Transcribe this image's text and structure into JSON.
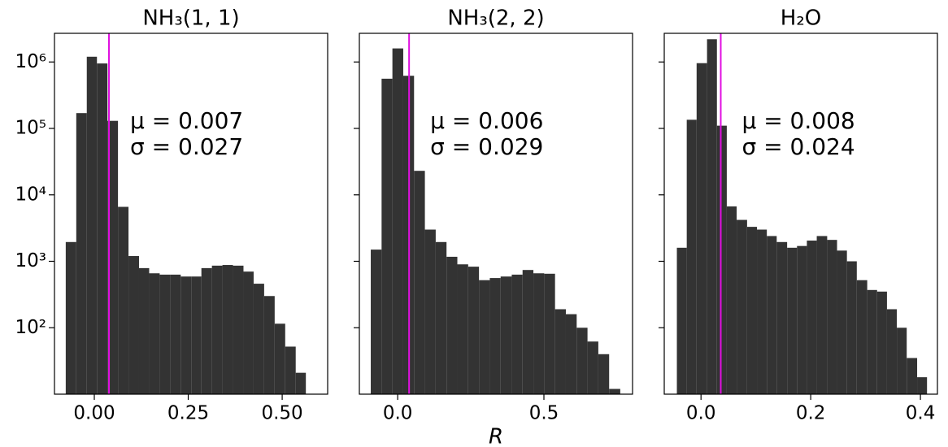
{
  "chart_data": [
    {
      "type": "histogram",
      "title": "NH₃(1, 1)",
      "yscale": "log",
      "color": "#333333",
      "vline_color": "#e010e0",
      "bins": [
        -0.076,
        -0.048,
        -0.02,
        0.007,
        0.035,
        0.063,
        0.091,
        0.119,
        0.146,
        0.174,
        0.202,
        0.23,
        0.258,
        0.285,
        0.313,
        0.341,
        0.369,
        0.397,
        0.424,
        0.452,
        0.48,
        0.508,
        0.536,
        0.563
      ],
      "counts": [
        1950,
        170000,
        1200000,
        950000,
        130000,
        6600,
        1200,
        790,
        660,
        630,
        630,
        590,
        590,
        790,
        860,
        880,
        860,
        700,
        460,
        300,
        115,
        52,
        21
      ],
      "vline": 0.039,
      "annotations": [
        "μ = 0.007",
        "σ = 0.027"
      ],
      "xlim": [
        -0.106,
        0.621
      ],
      "xticks": [
        {
          "value": 0,
          "label": "0.00"
        },
        {
          "value": 0.25,
          "label": "0.25"
        },
        {
          "value": 0.5,
          "label": "0.50"
        }
      ],
      "ylim": [
        10,
        2700000
      ],
      "yticks": [
        {
          "value": 100,
          "label": "10²"
        },
        {
          "value": 1000,
          "label": "10³"
        },
        {
          "value": 10000,
          "label": "10⁴"
        },
        {
          "value": 100000,
          "label": "10⁵"
        },
        {
          "value": 1000000,
          "label": "10⁶"
        }
      ]
    },
    {
      "type": "histogram",
      "title": "NH₃(2, 2)",
      "yscale": "log",
      "color": "#333333",
      "vline_color": "#e010e0",
      "xlabel": "R",
      "bins": [
        -0.092,
        -0.055,
        -0.018,
        0.019,
        0.056,
        0.093,
        0.13,
        0.167,
        0.204,
        0.241,
        0.278,
        0.315,
        0.352,
        0.39,
        0.427,
        0.464,
        0.501,
        0.538,
        0.575,
        0.612,
        0.649,
        0.686,
        0.723,
        0.761
      ],
      "counts": [
        1500,
        560000,
        1600000,
        620000,
        23000,
        3000,
        1950,
        1170,
        900,
        830,
        520,
        560,
        590,
        630,
        740,
        660,
        650,
        190,
        160,
        100,
        62,
        40,
        12
      ],
      "vline": 0.039,
      "annotations": [
        "μ = 0.006",
        "σ = 0.029"
      ],
      "xlim": [
        -0.131,
        0.803
      ],
      "xticks": [
        {
          "value": 0,
          "label": "0.0"
        },
        {
          "value": 0.5,
          "label": "0.5"
        }
      ],
      "ylim": [
        10,
        2700000
      ],
      "yticks": [
        100,
        1000,
        10000,
        100000,
        1000000
      ]
    },
    {
      "type": "histogram",
      "title": "H₂O",
      "yscale": "log",
      "color": "#333333",
      "vline_color": "#e010e0",
      "bins": [
        -0.044,
        -0.026,
        -0.008,
        0.011,
        0.029,
        0.047,
        0.065,
        0.084,
        0.102,
        0.12,
        0.138,
        0.157,
        0.175,
        0.193,
        0.211,
        0.23,
        0.248,
        0.266,
        0.284,
        0.303,
        0.321,
        0.339,
        0.357,
        0.375,
        0.394,
        0.412
      ],
      "counts": [
        1600,
        135000,
        960000,
        2200000,
        110000,
        6700,
        4200,
        3300,
        3000,
        2400,
        1950,
        1600,
        1700,
        2050,
        2400,
        2100,
        1450,
        1000,
        520,
        370,
        350,
        190,
        100,
        35,
        18
      ],
      "vline": 0.036,
      "annotations": [
        "μ = 0.008",
        "σ = 0.024"
      ],
      "xlim": [
        -0.067,
        0.431
      ],
      "xticks": [
        {
          "value": 0,
          "label": "0.0"
        },
        {
          "value": 0.2,
          "label": "0.2"
        },
        {
          "value": 0.4,
          "label": "0.4"
        }
      ],
      "ylim": [
        10,
        2700000
      ],
      "yticks": [
        100,
        1000,
        10000,
        100000,
        1000000
      ]
    }
  ]
}
